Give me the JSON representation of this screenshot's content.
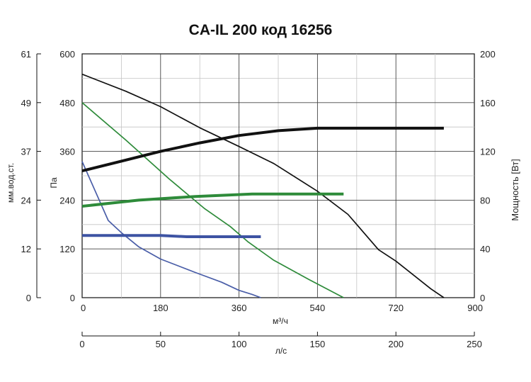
{
  "chart_data": {
    "type": "line",
    "title": "CA-IL 200 код 16256",
    "x_axis": {
      "label": "м³/ч",
      "range": [
        0,
        900
      ],
      "ticks": [
        "0",
        "180",
        "360",
        "540",
        "720",
        "900"
      ]
    },
    "x_axis_secondary": {
      "label": "л/с",
      "range": [
        0,
        250
      ],
      "ticks": [
        "0",
        "50",
        "100",
        "150",
        "200",
        "250"
      ]
    },
    "y_axis": {
      "label": "Па",
      "range": [
        0,
        600
      ],
      "ticks": [
        "0",
        "120",
        "240",
        "360",
        "480",
        "600"
      ]
    },
    "y_axis_outer": {
      "label": "мм.вод.ст.",
      "ticks": [
        "0",
        "12",
        "24",
        "37",
        "49",
        "61"
      ]
    },
    "y_axis_right": {
      "label": "Мощность [Вт]",
      "range": [
        0,
        200
      ],
      "ticks": [
        "0",
        "40",
        "80",
        "120",
        "160",
        "200"
      ]
    },
    "grid": true,
    "series": [
      {
        "kind": "pressure",
        "axis": "left",
        "color": "#111111",
        "points": [
          [
            0,
            550
          ],
          [
            100,
            508
          ],
          [
            180,
            470
          ],
          [
            270,
            418
          ],
          [
            360,
            372
          ],
          [
            440,
            330
          ],
          [
            540,
            262
          ],
          [
            610,
            205
          ],
          [
            680,
            118
          ],
          [
            720,
            90
          ],
          [
            800,
            22
          ],
          [
            830,
            0
          ]
        ]
      },
      {
        "kind": "pressure",
        "axis": "left",
        "color": "#2e8b3a",
        "points": [
          [
            0,
            480
          ],
          [
            100,
            388
          ],
          [
            200,
            292
          ],
          [
            280,
            220
          ],
          [
            340,
            175
          ],
          [
            380,
            138
          ],
          [
            440,
            92
          ],
          [
            520,
            45
          ],
          [
            600,
            0
          ]
        ]
      },
      {
        "kind": "pressure",
        "axis": "left",
        "color": "#4a5ea8",
        "points": [
          [
            0,
            335
          ],
          [
            60,
            190
          ],
          [
            90,
            160
          ],
          [
            130,
            125
          ],
          [
            180,
            95
          ],
          [
            260,
            62
          ],
          [
            320,
            38
          ],
          [
            360,
            18
          ],
          [
            390,
            8
          ],
          [
            410,
            0
          ]
        ]
      },
      {
        "kind": "power",
        "axis": "right",
        "color": "#111111",
        "points": [
          [
            0,
            104
          ],
          [
            90,
            112
          ],
          [
            180,
            120
          ],
          [
            270,
            127
          ],
          [
            360,
            133
          ],
          [
            450,
            137
          ],
          [
            540,
            139
          ],
          [
            630,
            139
          ],
          [
            720,
            139
          ],
          [
            830,
            139
          ]
        ]
      },
      {
        "kind": "power",
        "axis": "right",
        "color": "#2e8b3a",
        "points": [
          [
            0,
            75
          ],
          [
            130,
            80
          ],
          [
            260,
            83
          ],
          [
            390,
            85
          ],
          [
            490,
            85
          ],
          [
            600,
            85
          ]
        ]
      },
      {
        "kind": "power",
        "axis": "right",
        "color": "#3d53a3",
        "points": [
          [
            0,
            51
          ],
          [
            180,
            51
          ],
          [
            240,
            50
          ],
          [
            320,
            50
          ],
          [
            410,
            50
          ]
        ]
      }
    ]
  }
}
